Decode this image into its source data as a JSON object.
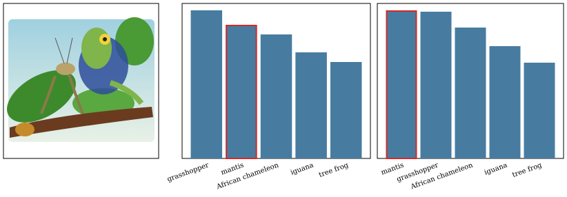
{
  "chart_data": [
    {
      "type": "bar",
      "categories": [
        "grasshopper",
        "mantis",
        "African chameleon",
        "iguana",
        "tree frog"
      ],
      "values": [
        215,
        194,
        180,
        154,
        140
      ],
      "color": "#477ca0",
      "ylim": [
        0,
        225
      ],
      "highlight_index": 1,
      "highlight_color": "#d62728"
    },
    {
      "type": "bar",
      "categories": [
        "mantis",
        "grasshopper",
        "African chameleon",
        "iguana",
        "tree frog"
      ],
      "values": [
        215,
        213,
        190,
        163,
        139
      ],
      "color": "#477ca0",
      "ylim": [
        0,
        225
      ],
      "highlight_index": 0,
      "highlight_color": "#d62728"
    }
  ]
}
